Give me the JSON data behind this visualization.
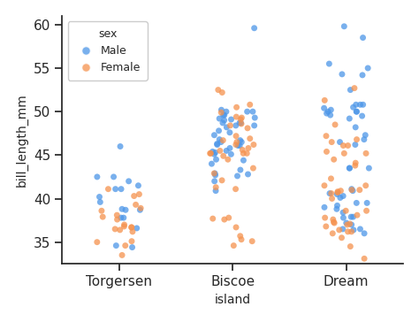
{
  "title": "",
  "xlabel": "island",
  "ylabel": "bill_length_mm",
  "categories": [
    "Torgersen",
    "Biscoe",
    "Dream"
  ],
  "hue_var": "sex",
  "hue_labels": [
    "Male",
    "Female"
  ],
  "male_color": "#4C96E8",
  "female_color": "#F5924E",
  "alpha": 0.75,
  "jitter": 0.2,
  "ylim": [
    32.5,
    61
  ],
  "yticks": [
    35,
    40,
    45,
    50,
    55,
    60
  ],
  "marker_size": 5,
  "bg_color": "#FFFFFF",
  "legend_title": "sex",
  "seed": 0,
  "torgersen_male": [
    41.1,
    42.0,
    37.8,
    37.8,
    41.1,
    38.7,
    34.6,
    36.6,
    38.7,
    42.5,
    34.4,
    46.0,
    38.8,
    41.5,
    40.2,
    39.6,
    42.5
  ],
  "torgersen_female": [
    40.3,
    36.7,
    39.3,
    38.9,
    36.2,
    37.6,
    35.1,
    38.6,
    34.6,
    37.9,
    40.5,
    36.4,
    36.5,
    41.1,
    36.7,
    38.1,
    33.5,
    35.0,
    37.0,
    36.8
  ],
  "biscoe_male": [
    46.1,
    50.0,
    48.7,
    50.0,
    47.6,
    46.5,
    45.4,
    46.7,
    43.3,
    46.8,
    40.9,
    49.0,
    45.5,
    48.4,
    45.8,
    49.3,
    42.0,
    49.2,
    46.2,
    48.7,
    50.2,
    45.1,
    46.5,
    46.3,
    42.9,
    46.1,
    44.5,
    47.8,
    48.2,
    50.0,
    47.3,
    42.8,
    45.1,
    59.6,
    49.1,
    48.4,
    42.6,
    44.4,
    44.0,
    48.7,
    42.7,
    49.6,
    45.3,
    49.6
  ],
  "biscoe_female": [
    37.8,
    37.7,
    35.3,
    41.1,
    42.1,
    34.6,
    42.9,
    36.7,
    35.1,
    37.6,
    35.7,
    41.3,
    45.6,
    46.7,
    52.5,
    50.5,
    45.2,
    48.1,
    45.2,
    49.1,
    52.2,
    45.2,
    46.2,
    49.9,
    47.2,
    46.5,
    46.2,
    45.5,
    43.5,
    48.4,
    45.8,
    49.3,
    44.9,
    45.2,
    44.5,
    50.8,
    49.4,
    46.9,
    48.6
  ],
  "dream_male": [
    39.5,
    37.2,
    39.5,
    40.9,
    36.5,
    37.9,
    39.0,
    39.2,
    36.4,
    38.8,
    41.1,
    38.4,
    40.6,
    40.5,
    49.2,
    52.5,
    43.5,
    50.5,
    37.9,
    40.3,
    36.0,
    40.1,
    37.8,
    46.8,
    36.5,
    48.2,
    50.0,
    47.3,
    50.8,
    43.5,
    49.6,
    50.8,
    50.2,
    37.0,
    55.5,
    49.5,
    50.8,
    43.5,
    54.3,
    49.8,
    46.2,
    59.8,
    50.0,
    58.5,
    55.0,
    54.2,
    50.4,
    46.5,
    50.0
  ],
  "dream_female": [
    40.6,
    37.0,
    36.8,
    36.0,
    41.5,
    41.0,
    37.3,
    36.4,
    41.5,
    44.1,
    37.8,
    42.3,
    41.0,
    37.1,
    37.2,
    45.2,
    36.2,
    36.2,
    34.5,
    46.8,
    40.7,
    35.5,
    37.6,
    40.0,
    38.6,
    38.1,
    38.6,
    44.5,
    48.5,
    47.2,
    46.1,
    40.8,
    43.8,
    40.9,
    46.5,
    51.3,
    45.4,
    52.7,
    45.2,
    46.1,
    33.1,
    32.1
  ]
}
